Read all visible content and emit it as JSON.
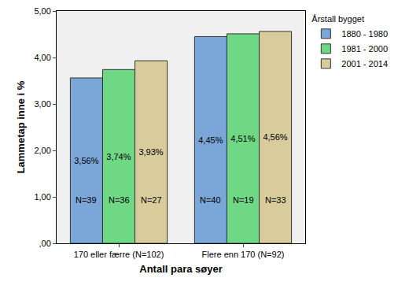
{
  "chart_data": {
    "type": "bar",
    "x_label": "Antall para søyer",
    "y_label": "Lammetap inne i %",
    "categories": [
      "170 eller færre (N=102)",
      "Flere enn 170 (N=92)"
    ],
    "legend_title": "Årstall bygget",
    "legend": "right",
    "grid": false,
    "data_labels": true,
    "ylim": [
      0,
      5
    ],
    "yticks": [
      {
        "value": 0,
        "label": ",00"
      },
      {
        "value": 1,
        "label": "1,00"
      },
      {
        "value": 2,
        "label": "2,00"
      },
      {
        "value": 3,
        "label": "3,00"
      },
      {
        "value": 4,
        "label": "4,00"
      },
      {
        "value": 5,
        "label": "5,00"
      }
    ],
    "series": [
      {
        "name": "1880 - 1980",
        "color": "#7ba6d8",
        "values": [
          3.56,
          4.45
        ],
        "value_labels": [
          "3,56%",
          "4,45%"
        ],
        "count_labels": [
          "N=39",
          "N=40"
        ]
      },
      {
        "name": "1981 - 2000",
        "color": "#6fd884",
        "values": [
          3.74,
          4.51
        ],
        "value_labels": [
          "3,74%",
          "4,51%"
        ],
        "count_labels": [
          "N=36",
          "N=19"
        ]
      },
      {
        "name": "2001 - 2014",
        "color": "#d8cc9c",
        "values": [
          3.93,
          4.56
        ],
        "value_labels": [
          "3,93%",
          "4,56%"
        ],
        "count_labels": [
          "N=27",
          "N=33"
        ]
      }
    ]
  }
}
